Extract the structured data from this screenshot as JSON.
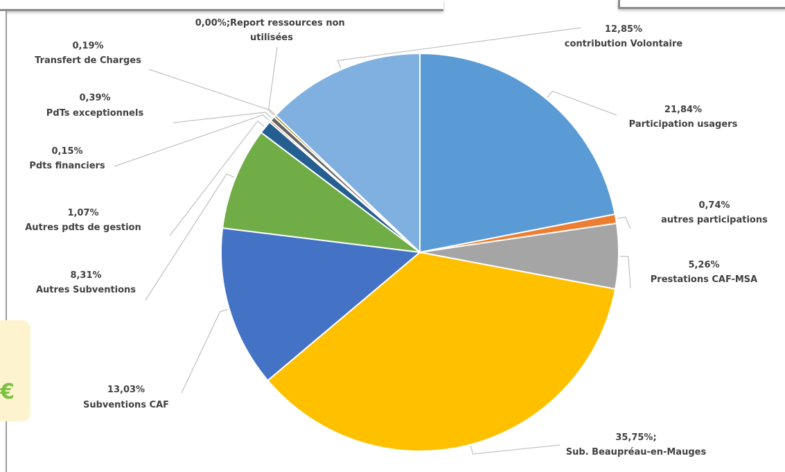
{
  "decor": {
    "euro_symbol": "€"
  },
  "chart_data": {
    "type": "pie",
    "title": "",
    "start_angle_deg": 0,
    "direction": "clockwise",
    "slices": [
      {
        "label": "Participation usagers",
        "value": 21.84,
        "pct_text": "21,84%",
        "color": "#5b9bd5"
      },
      {
        "label": "autres participations",
        "value": 0.74,
        "pct_text": "0,74%",
        "color": "#ed7d31"
      },
      {
        "label": "Prestations CAF-MSA",
        "value": 5.26,
        "pct_text": "5,26%",
        "color": "#a5a5a5"
      },
      {
        "label": "Sub. Beaupréau-en-Mauges",
        "value": 35.75,
        "pct_text": "35,75%;",
        "color": "#ffc000"
      },
      {
        "label": "Subventions CAF",
        "value": 13.03,
        "pct_text": "13,03%",
        "color": "#4472c4"
      },
      {
        "label": "Autres Subventions",
        "value": 8.31,
        "pct_text": "8,31%",
        "color": "#70ad47"
      },
      {
        "label": "Autres pdts de gestion",
        "value": 1.07,
        "pct_text": "1,07%",
        "color": "#255e91"
      },
      {
        "label": "Pdts financiers",
        "value": 0.15,
        "pct_text": "0,15%",
        "color": "#9e480e"
      },
      {
        "label": "PdTs exceptionnels",
        "value": 0.39,
        "pct_text": "0,39%",
        "color": "#636363"
      },
      {
        "label": "Transfert de Charges",
        "value": 0.19,
        "pct_text": "0,19%",
        "color": "#997300"
      },
      {
        "label": "Report ressources non utilisées",
        "value": 0.0,
        "pct_text": "0,00%",
        "color": "#264478"
      },
      {
        "label": "contribution Volontaire",
        "value": 12.85,
        "pct_text": "12,85%",
        "color": "#7fb0e0"
      }
    ]
  }
}
